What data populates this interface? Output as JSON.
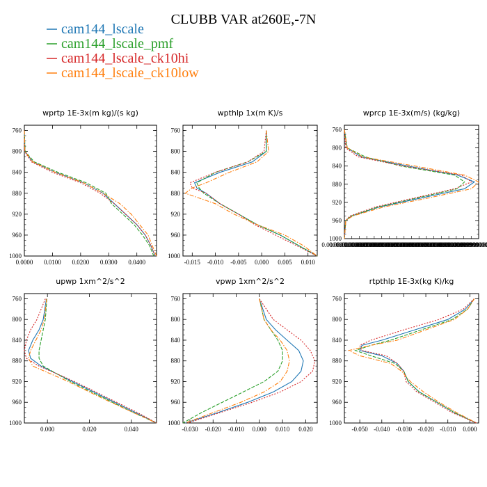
{
  "title": "CLUBB VAR at260E,-7N",
  "legend": [
    {
      "label": "cam144_lscale",
      "color": "#1f77b4"
    },
    {
      "label": "cam144_lscale_pmf",
      "color": "#2ca02c"
    },
    {
      "label": "cam144_lscale_ck10hi",
      "color": "#d62728"
    },
    {
      "label": "cam144_lscale_ck10low",
      "color": "#ff7f0e"
    }
  ],
  "chart_data": [
    {
      "type": "line",
      "title": "wprtp  1E-3x(m kg)/(s kg)",
      "y_reversed": true,
      "ylim": [
        1000,
        750
      ],
      "yticks": [
        "760",
        "800",
        "840",
        "880",
        "920",
        "960",
        "1000"
      ],
      "xlim": [
        0,
        0.047
      ],
      "xticks": [
        "0.0000",
        "0.0100",
        "0.0200",
        "0.0300",
        "0.0400"
      ],
      "y": [
        760,
        800,
        820,
        840,
        860,
        880,
        900,
        920,
        940,
        960,
        980,
        1000
      ],
      "series": [
        {
          "name": "cam144_lscale",
          "values": [
            0,
            0.0002,
            0.003,
            0.011,
            0.021,
            0.028,
            0.032,
            0.036,
            0.04,
            0.043,
            0.045,
            0.0465
          ]
        },
        {
          "name": "cam144_lscale_pmf",
          "values": [
            0,
            0.0003,
            0.0035,
            0.012,
            0.022,
            0.029,
            0.031,
            0.035,
            0.039,
            0.042,
            0.0445,
            0.046
          ]
        },
        {
          "name": "cam144_lscale_ck10hi",
          "values": [
            0,
            0.0001,
            0.0025,
            0.01,
            0.02,
            0.027,
            0.032,
            0.036,
            0.04,
            0.043,
            0.045,
            0.0465
          ]
        },
        {
          "name": "cam144_lscale_ck10low",
          "values": [
            0,
            0.0002,
            0.003,
            0.011,
            0.021,
            0.028,
            0.034,
            0.038,
            0.041,
            0.044,
            0.0455,
            0.047
          ]
        }
      ]
    },
    {
      "type": "line",
      "title": "wpthlp  1x(m K)/s",
      "y_reversed": true,
      "ylim": [
        1000,
        750
      ],
      "yticks": [
        "760",
        "800",
        "840",
        "880",
        "920",
        "960",
        "1000"
      ],
      "xlim": [
        -0.017,
        0.012
      ],
      "xticks": [
        "-0.015",
        "-0.010",
        "-0.005",
        "0.000",
        "0.005",
        "0.010"
      ],
      "y": [
        760,
        800,
        820,
        840,
        860,
        870,
        880,
        900,
        920,
        940,
        960,
        980,
        1000
      ],
      "series": [
        {
          "name": "cam144_lscale",
          "values": [
            0.001,
            0.001,
            -0.002,
            -0.009,
            -0.0145,
            -0.014,
            -0.012,
            -0.009,
            -0.005,
            -0.001,
            0.004,
            0.008,
            0.012
          ]
        },
        {
          "name": "cam144_lscale_pmf",
          "values": [
            0.001,
            0.001,
            -0.003,
            -0.01,
            -0.014,
            -0.0135,
            -0.0125,
            -0.009,
            -0.005,
            -0.001,
            0.004,
            0.008,
            0.012
          ]
        },
        {
          "name": "cam144_lscale_ck10hi",
          "values": [
            0.001,
            0.0005,
            -0.003,
            -0.01,
            -0.0155,
            -0.015,
            -0.012,
            -0.009,
            -0.005,
            -0.0015,
            0.003,
            0.0075,
            0.012
          ]
        },
        {
          "name": "cam144_lscale_ck10low",
          "values": [
            0.001,
            0.0015,
            -0.001,
            -0.007,
            -0.012,
            -0.015,
            -0.0165,
            -0.01,
            -0.006,
            -0.001,
            0.005,
            0.009,
            0.012
          ]
        }
      ]
    },
    {
      "type": "line",
      "title": "wprcp  1E-3x(m/s) (kg/kg)",
      "y_reversed": true,
      "ylim": [
        1000,
        750
      ],
      "yticks": [
        "760",
        "800",
        "840",
        "880",
        "920",
        "960",
        "1000"
      ],
      "xlim": [
        0,
        9.5e-06
      ],
      "xticks": [
        "0.0000000000000",
        "0.0000000000999",
        "0.0000000000999",
        "0.0000000000999",
        "0.0000000000999",
        "0.0000000000999",
        "0.0000000000999",
        "0.0000000000999",
        "0.0000000000999",
        "0.0000000000999",
        "0.0000000000999",
        "0.0000000000999",
        "0.0000000000999",
        "0.0000000000999",
        "0.0000000000999",
        "0.0000000000999",
        "0.00000999900000",
        "0.0000099900000",
        "0.0000000000000"
      ],
      "y": [
        760,
        800,
        820,
        840,
        860,
        875,
        890,
        910,
        930,
        950,
        960,
        1000
      ],
      "series": [
        {
          "name": "cam144_lscale",
          "values": [
            0,
            2e-07,
            1.2e-06,
            4.5e-06,
            8e-06,
            9.2e-06,
            8.5e-06,
            5.5e-06,
            2.5e-06,
            5e-07,
            1e-07,
            0
          ]
        },
        {
          "name": "cam144_lscale_pmf",
          "values": [
            0,
            2e-07,
            1.5e-06,
            4e-06,
            7.8e-06,
            8.5e-06,
            8e-06,
            5.2e-06,
            2.4e-06,
            5e-07,
            1e-07,
            0
          ]
        },
        {
          "name": "cam144_lscale_ck10hi",
          "values": [
            0,
            1e-07,
            1e-06,
            4.2e-06,
            8.3e-06,
            9e-06,
            7.8e-06,
            5e-06,
            2.2e-06,
            4e-07,
            1e-07,
            0
          ]
        },
        {
          "name": "cam144_lscale_ck10low",
          "values": [
            0,
            2e-07,
            1.3e-06,
            5e-06,
            8.5e-06,
            9.5e-06,
            9e-06,
            6e-06,
            2.8e-06,
            6e-07,
            1e-07,
            0
          ]
        }
      ]
    },
    {
      "type": "line",
      "title": "upwp  1xm^2/s^2",
      "y_reversed": true,
      "ylim": [
        1000,
        750
      ],
      "yticks": [
        "760",
        "800",
        "840",
        "880",
        "920",
        "960",
        "1000"
      ],
      "xlim": [
        -0.011,
        0.052
      ],
      "xticks": [
        "0.000",
        "0.020",
        "0.040"
      ],
      "y": [
        760,
        800,
        820,
        840,
        860,
        875,
        890,
        920,
        950,
        980,
        1000
      ],
      "series": [
        {
          "name": "cam144_lscale",
          "values": [
            -0.0005,
            -0.002,
            -0.004,
            -0.007,
            -0.009,
            -0.008,
            -0.003,
            0.012,
            0.027,
            0.042,
            0.052
          ]
        },
        {
          "name": "cam144_lscale_pmf",
          "values": [
            -0.0003,
            -0.001,
            -0.002,
            -0.003,
            -0.004,
            -0.004,
            -0.002,
            0.011,
            0.026,
            0.041,
            0.052
          ]
        },
        {
          "name": "cam144_lscale_ck10hi",
          "values": [
            -0.001,
            -0.005,
            -0.008,
            -0.01,
            -0.011,
            -0.01,
            -0.004,
            0.013,
            0.028,
            0.043,
            0.052
          ]
        },
        {
          "name": "cam144_lscale_ck10low",
          "values": [
            -0.0004,
            -0.0015,
            -0.003,
            -0.0055,
            -0.008,
            -0.009,
            -0.007,
            0.01,
            0.025,
            0.041,
            0.052
          ]
        }
      ]
    },
    {
      "type": "line",
      "title": "vpwp  1xm^2/s^2",
      "y_reversed": true,
      "ylim": [
        1000,
        750
      ],
      "yticks": [
        "760",
        "800",
        "840",
        "880",
        "920",
        "960",
        "1000"
      ],
      "xlim": [
        -0.033,
        0.025
      ],
      "xticks": [
        "-0.030",
        "-0.020",
        "-0.010",
        "0.000",
        "0.010",
        "0.020"
      ],
      "y": [
        760,
        800,
        820,
        840,
        860,
        880,
        900,
        920,
        940,
        960,
        980,
        1000
      ],
      "series": [
        {
          "name": "cam144_lscale",
          "values": [
            0,
            0.003,
            0.007,
            0.012,
            0.017,
            0.019,
            0.018,
            0.014,
            0.006,
            -0.005,
            -0.018,
            -0.032
          ]
        },
        {
          "name": "cam144_lscale_pmf",
          "values": [
            0,
            0.002,
            0.005,
            0.008,
            0.01,
            0.01,
            0.008,
            0.002,
            -0.007,
            -0.016,
            -0.025,
            -0.033
          ]
        },
        {
          "name": "cam144_lscale_ck10hi",
          "values": [
            0,
            0.006,
            0.012,
            0.018,
            0.022,
            0.024,
            0.023,
            0.018,
            0.009,
            -0.003,
            -0.017,
            -0.031
          ]
        },
        {
          "name": "cam144_lscale_ck10low",
          "values": [
            0,
            0.002,
            0.005,
            0.009,
            0.012,
            0.013,
            0.012,
            0.009,
            0.002,
            -0.008,
            -0.02,
            -0.032
          ]
        }
      ]
    },
    {
      "type": "line",
      "title": "rtpthlp  1E-3x(kg K)/kg",
      "y_reversed": true,
      "ylim": [
        1000,
        750
      ],
      "yticks": [
        "760",
        "800",
        "840",
        "880",
        "920",
        "960",
        "1000"
      ],
      "xlim": [
        -0.057,
        0.004
      ],
      "xticks": [
        "-0.050",
        "-0.040",
        "-0.030",
        "-0.020",
        "-0.010",
        "0.000"
      ],
      "y": [
        760,
        780,
        800,
        820,
        840,
        850,
        860,
        870,
        885,
        900,
        920,
        940,
        960,
        980,
        1000
      ],
      "series": [
        {
          "name": "cam144_lscale",
          "values": [
            0.002,
            -0.002,
            -0.01,
            -0.025,
            -0.04,
            -0.049,
            -0.05,
            -0.04,
            -0.033,
            -0.03,
            -0.028,
            -0.023,
            -0.015,
            -0.007,
            0.003
          ]
        },
        {
          "name": "cam144_lscale_pmf",
          "values": [
            0.002,
            -0.001,
            -0.008,
            -0.022,
            -0.036,
            -0.045,
            -0.052,
            -0.045,
            -0.034,
            -0.03,
            -0.028,
            -0.023,
            -0.015,
            -0.007,
            0.003
          ]
        },
        {
          "name": "cam144_lscale_ck10hi",
          "values": [
            0.002,
            -0.003,
            -0.014,
            -0.03,
            -0.045,
            -0.05,
            -0.049,
            -0.038,
            -0.033,
            -0.03,
            -0.029,
            -0.024,
            -0.016,
            -0.008,
            0.003
          ]
        },
        {
          "name": "cam144_lscale_ck10low",
          "values": [
            0.002,
            -0.001,
            -0.007,
            -0.02,
            -0.033,
            -0.045,
            -0.055,
            -0.05,
            -0.036,
            -0.031,
            -0.027,
            -0.021,
            -0.014,
            -0.006,
            0.003
          ]
        }
      ]
    }
  ]
}
